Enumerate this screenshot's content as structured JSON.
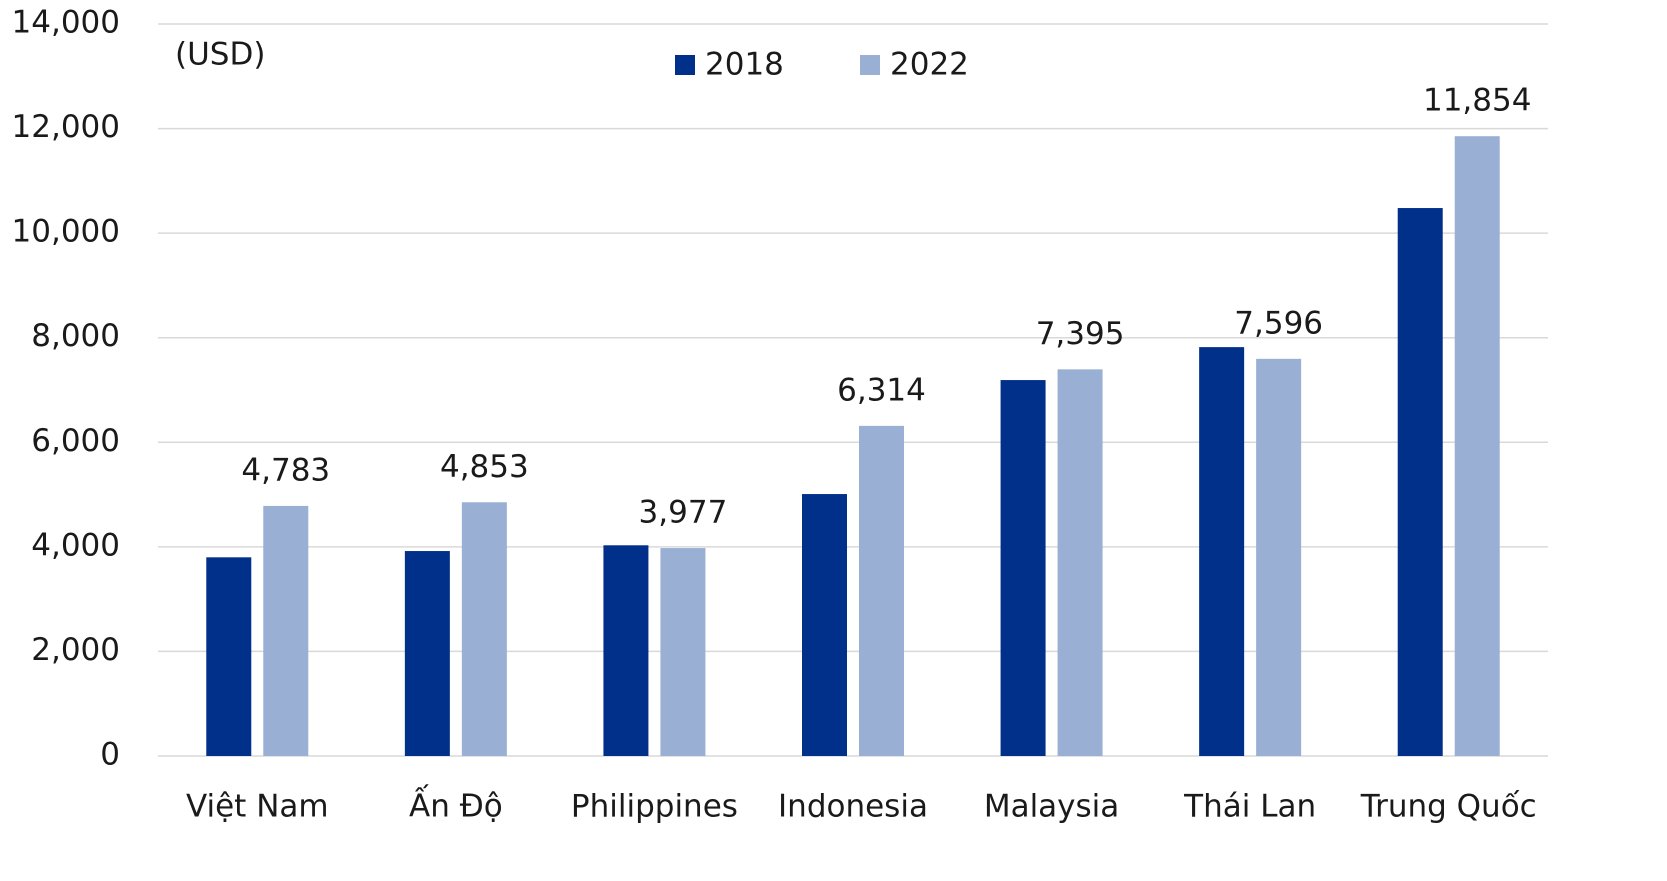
{
  "chart_data": {
    "type": "bar",
    "annotation": "(USD)",
    "categories": [
      "Việt Nam",
      "Ấn Độ",
      "Philippines",
      "Indonesia",
      "Malaysia",
      "Thái Lan",
      "Trung Quốc"
    ],
    "series": [
      {
        "name": "2018",
        "color": "#00308a",
        "values": [
          3800,
          3920,
          4030,
          5010,
          7190,
          7820,
          10480
        ]
      },
      {
        "name": "2022",
        "color": "#9aafd4",
        "values": [
          4783,
          4853,
          3977,
          6314,
          7395,
          7596,
          11854
        ],
        "value_labels": [
          "4,783",
          "4,853",
          "3,977",
          "6,314",
          "7,395",
          "7,596",
          "11,854"
        ]
      }
    ],
    "ylim": [
      0,
      14000
    ],
    "yticks": [
      0,
      {
        "value": 2000,
        "label": "2,000"
      },
      {
        "value": 4000,
        "label": "4,000"
      },
      {
        "value": 6000,
        "label": "6,000"
      },
      {
        "value": 8000,
        "label": "8,000"
      },
      {
        "value": 10000,
        "label": "10,000"
      },
      {
        "value": 12000,
        "label": "12,000"
      },
      {
        "value": 14000,
        "label": "14,000"
      }
    ],
    "grid": true,
    "legend": "top"
  }
}
